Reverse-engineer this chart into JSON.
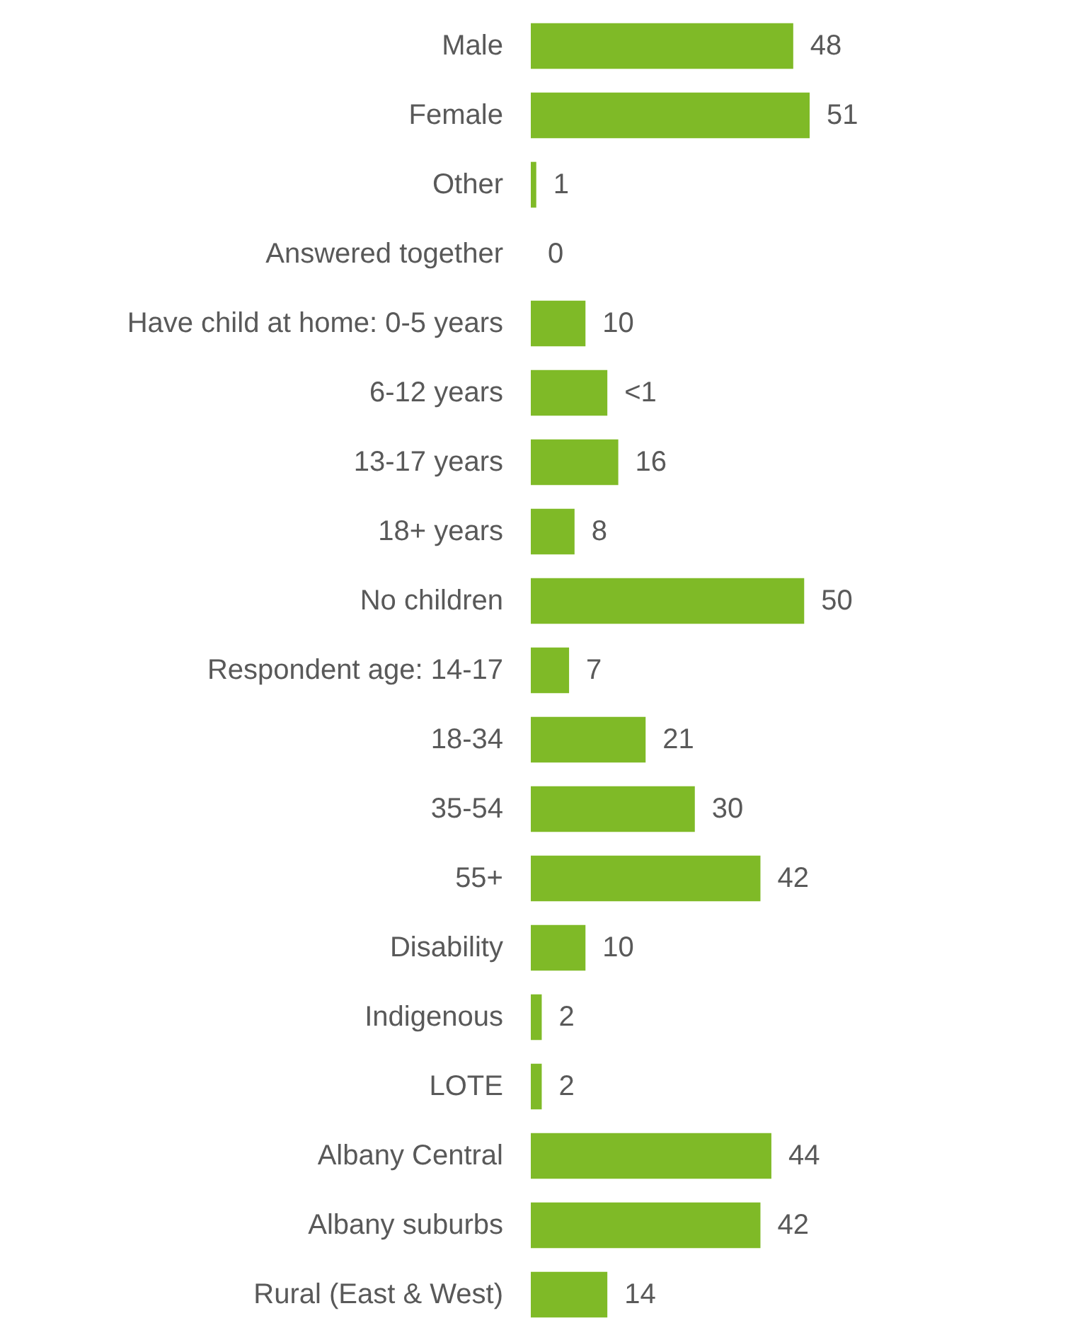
{
  "chart_data": {
    "type": "bar",
    "orientation": "horizontal",
    "categories": [
      "Male",
      "Female",
      "Other",
      "Answered together",
      "Have child at home: 0-5 years",
      "6-12 years",
      "13-17 years",
      "18+ years",
      "No children",
      "Respondent age: 14-17",
      "18-34",
      "35-54",
      "55+",
      "Disability",
      "Indigenous",
      "LOTE",
      "Albany Central",
      "Albany suburbs",
      "Rural (East & West)"
    ],
    "values": [
      48,
      51,
      1,
      0,
      10,
      14,
      16,
      8,
      50,
      7,
      21,
      30,
      42,
      10,
      2,
      2,
      44,
      42,
      14
    ],
    "value_labels": [
      "48",
      "51",
      "1",
      "0",
      "10",
      "<1",
      "16",
      "8",
      "50",
      "7",
      "21",
      "30",
      "42",
      "10",
      "2",
      "2",
      "44",
      "42",
      "14"
    ],
    "color": "#7fba27"
  }
}
